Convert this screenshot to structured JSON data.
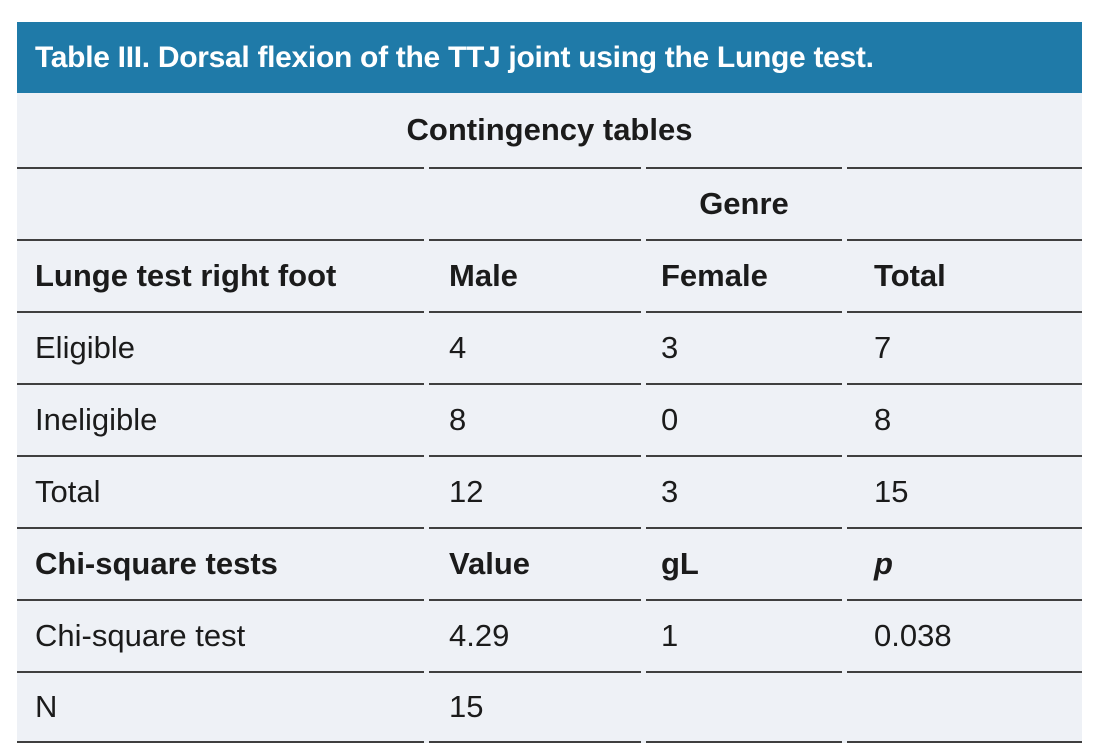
{
  "table": {
    "title": "Table III. Dorsal flexion of the TTJ joint using the Lunge test.",
    "subtitle": "Contingency tables",
    "genre_header": "Genre",
    "contingency": {
      "columns": [
        "Lunge test right foot",
        "Male",
        "Female",
        "Total"
      ],
      "rows": [
        {
          "label": "Eligible",
          "male": "4",
          "female": "3",
          "total": "7"
        },
        {
          "label": "Ineligible",
          "male": "8",
          "female": "0",
          "total": "8"
        },
        {
          "label": "Total",
          "male": "12",
          "female": "3",
          "total": "15"
        }
      ]
    },
    "chi_square": {
      "columns": [
        "Chi-square tests",
        "Value",
        "gL",
        "p"
      ],
      "rows": [
        {
          "label": "Chi-square test",
          "value": "4.29",
          "gl": "1",
          "p": "0.038"
        },
        {
          "label": "N",
          "value": "15",
          "gl": "",
          "p": ""
        }
      ]
    }
  },
  "colors": {
    "title_bar_bg": "#1f7aa8",
    "title_text": "#ffffff",
    "body_bg": "#eef1f6",
    "text": "#1b1b1b",
    "rule": "#3f3f3f"
  }
}
